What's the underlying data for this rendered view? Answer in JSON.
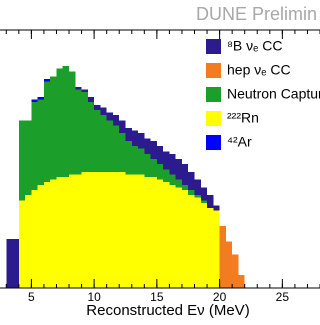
{
  "chart_data": {
    "type": "histogram",
    "title": "DUNE Prelimin",
    "x_label": "Reconstructed Eν (MeV)",
    "xlim": [
      2.5,
      28
    ],
    "xticks": [
      5,
      10,
      15,
      20,
      25
    ],
    "ylim": [
      0,
      100
    ],
    "stacked": true,
    "bins": [
      3.0,
      3.5,
      4.0,
      4.5,
      5.0,
      5.5,
      6.0,
      6.5,
      7.0,
      7.5,
      8.0,
      8.5,
      9.0,
      9.5,
      10.0,
      10.5,
      11.0,
      11.5,
      12.0,
      12.5,
      13.0,
      13.5,
      14.0,
      14.5,
      15.0,
      15.5,
      16.0,
      16.5,
      17.0,
      17.5,
      18.0,
      18.5,
      19.0,
      19.5,
      20.0,
      20.5,
      21.0,
      21.5,
      22.0
    ],
    "series": [
      {
        "name": "⁸B νₑ CC",
        "color": "#2b1b8f",
        "values": [
          19,
          19,
          0,
          0,
          0,
          0,
          0,
          0,
          0,
          0,
          0,
          1,
          1,
          2,
          2,
          3,
          3,
          4,
          5,
          5,
          6,
          6,
          6,
          7,
          7,
          7,
          8,
          8,
          8,
          7,
          6,
          5,
          5,
          2,
          0,
          0,
          0,
          0
        ]
      },
      {
        "name": "hep νₑ CC",
        "color": "#f47c20",
        "values": [
          0,
          0,
          0,
          0,
          0,
          0,
          0,
          0,
          0,
          0,
          0,
          0,
          0,
          0,
          0,
          0,
          0,
          0,
          0,
          0,
          0,
          0,
          0,
          0,
          0,
          0,
          0,
          0,
          0,
          0,
          0,
          0,
          0,
          0,
          24,
          18,
          13,
          5
        ]
      },
      {
        "name": "Neutron Capture",
        "color": "#1b9e2a",
        "values": [
          0,
          0,
          31,
          29,
          34,
          33,
          39,
          40,
          42,
          43,
          40,
          33,
          31,
          27,
          24,
          22,
          20,
          18,
          15,
          13,
          11,
          10,
          9,
          7,
          6,
          5,
          4,
          3,
          2,
          2,
          1,
          1,
          0,
          0,
          0,
          0,
          0,
          0
        ]
      },
      {
        "name": "²²²Rn",
        "color": "#ffff00",
        "values": [
          0,
          0,
          34,
          36,
          38,
          40,
          41,
          42,
          43,
          43,
          44,
          44,
          45,
          45,
          45,
          45,
          45,
          45,
          45,
          44,
          44,
          44,
          43,
          43,
          42,
          41,
          40,
          39,
          38,
          36,
          35,
          33,
          31,
          30,
          0,
          0,
          0,
          0
        ]
      },
      {
        "name": "⁴²Ar",
        "color": "#0000ff",
        "values": [
          0,
          0,
          0,
          0,
          1,
          1,
          1,
          0,
          0,
          0,
          0,
          0,
          0,
          0,
          0,
          0,
          0,
          0,
          0,
          0,
          0,
          0,
          0,
          0,
          0,
          0,
          0,
          0,
          0,
          0,
          0,
          0,
          0,
          0,
          0,
          0,
          0,
          0
        ]
      }
    ]
  }
}
